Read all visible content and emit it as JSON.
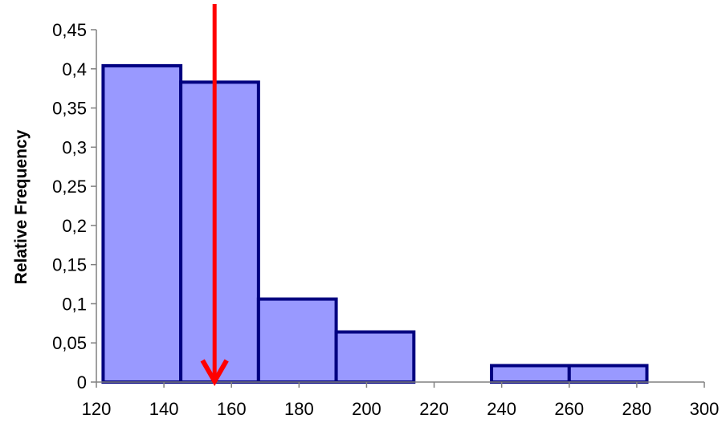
{
  "chart_data": {
    "type": "bar",
    "subtype": "histogram",
    "bins": [
      {
        "x0": 122,
        "x1": 145,
        "value": 0.404
      },
      {
        "x0": 145,
        "x1": 168,
        "value": 0.383
      },
      {
        "x0": 168,
        "x1": 191,
        "value": 0.106
      },
      {
        "x0": 191,
        "x1": 214,
        "value": 0.064
      },
      {
        "x0": 214,
        "x1": 237,
        "value": 0.0
      },
      {
        "x0": 237,
        "x1": 260,
        "value": 0.021
      },
      {
        "x0": 260,
        "x1": 283,
        "value": 0.021
      }
    ],
    "xlabel": "",
    "ylabel": "Relative Frequency",
    "xlim": [
      120,
      300
    ],
    "ylim": [
      0,
      0.45
    ],
    "xticks": [
      "120",
      "140",
      "160",
      "180",
      "200",
      "220",
      "240",
      "260",
      "280",
      "300"
    ],
    "yticks": [
      "0",
      "0,05",
      "0,1",
      "0,15",
      "0,2",
      "0,25",
      "0,3",
      "0,35",
      "0,4",
      "0,45"
    ],
    "grid": false,
    "annotations": [
      {
        "type": "arrow",
        "x": 155,
        "direction": "down"
      }
    ],
    "colors": {
      "bar_fill": "#9999ff",
      "bar_edge": "#000080",
      "arrow": "#ff0000",
      "axis": "#808080"
    }
  }
}
